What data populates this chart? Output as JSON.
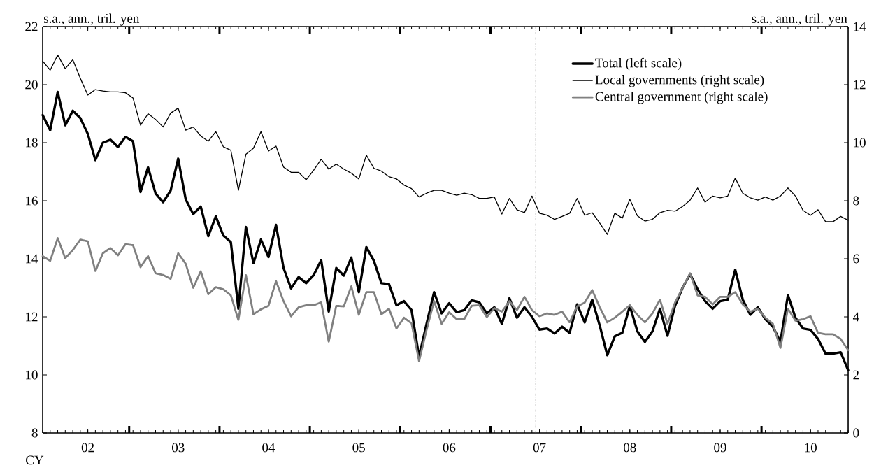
{
  "chart_data": {
    "type": "line",
    "xlabel": "CY",
    "ylabel": "s.a., ann., tril. yen",
    "y2label": "s.a., ann., tril. yen",
    "x": [
      "2002-01",
      "2002-02",
      "2002-03",
      "2002-04",
      "2002-05",
      "2002-06",
      "2002-07",
      "2002-08",
      "2002-09",
      "2002-10",
      "2002-11",
      "2002-12",
      "2003-01",
      "2003-02",
      "2003-03",
      "2003-04",
      "2003-05",
      "2003-06",
      "2003-07",
      "2003-08",
      "2003-09",
      "2003-10",
      "2003-11",
      "2003-12",
      "2004-01",
      "2004-02",
      "2004-03",
      "2004-04",
      "2004-05",
      "2004-06",
      "2004-07",
      "2004-08",
      "2004-09",
      "2004-10",
      "2004-11",
      "2004-12",
      "2005-01",
      "2005-02",
      "2005-03",
      "2005-04",
      "2005-05",
      "2005-06",
      "2005-07",
      "2005-08",
      "2005-09",
      "2005-10",
      "2005-11",
      "2005-12",
      "2006-01",
      "2006-02",
      "2006-03",
      "2006-04",
      "2006-05",
      "2006-06",
      "2006-07",
      "2006-08",
      "2006-09",
      "2006-10",
      "2006-11",
      "2006-12",
      "2007-01",
      "2007-02",
      "2007-03",
      "2007-04",
      "2007-05",
      "2007-06",
      "2007-07",
      "2007-08",
      "2007-09",
      "2007-10",
      "2007-11",
      "2007-12",
      "2008-01",
      "2008-02",
      "2008-03",
      "2008-04",
      "2008-05",
      "2008-06",
      "2008-07",
      "2008-08",
      "2008-09",
      "2008-10",
      "2008-11",
      "2008-12",
      "2009-01",
      "2009-02",
      "2009-03",
      "2009-04",
      "2009-05",
      "2009-06",
      "2009-07",
      "2009-08",
      "2009-09",
      "2009-10",
      "2009-11",
      "2009-12",
      "2010-01",
      "2010-02",
      "2010-03",
      "2010-04",
      "2010-05",
      "2010-06",
      "2010-07",
      "2010-08",
      "2010-09",
      "2010-10",
      "2010-11",
      "2010-12"
    ],
    "series": [
      {
        "name": "Total (left scale)",
        "color": "#000000",
        "axis": "y",
        "values": [
          18.95,
          18.43,
          19.75,
          18.6,
          19.1,
          18.85,
          18.3,
          17.4,
          18.0,
          18.1,
          17.85,
          18.2,
          18.05,
          16.3,
          17.15,
          16.25,
          15.95,
          16.35,
          17.45,
          16.05,
          15.54,
          15.8,
          14.78,
          15.46,
          14.8,
          14.57,
          12.28,
          15.1,
          13.85,
          14.66,
          14.06,
          15.17,
          13.68,
          12.98,
          13.37,
          13.16,
          13.44,
          13.95,
          12.18,
          13.68,
          13.42,
          14.04,
          12.85,
          14.4,
          13.93,
          13.16,
          13.13,
          12.4,
          12.54,
          12.23,
          10.63,
          11.76,
          12.85,
          12.12,
          12.47,
          12.16,
          12.23,
          12.57,
          12.5,
          12.12,
          12.33,
          11.76,
          12.64,
          11.97,
          12.33,
          12.0,
          11.56,
          11.6,
          11.43,
          11.66,
          11.45,
          12.43,
          11.81,
          12.59,
          11.7,
          10.68,
          11.33,
          11.45,
          12.38,
          11.5,
          11.14,
          11.5,
          12.28,
          11.35,
          12.38,
          13.0,
          13.47,
          12.95,
          12.54,
          12.28,
          12.54,
          12.59,
          13.62,
          12.59,
          12.07,
          12.33,
          11.92,
          11.66,
          11.14,
          12.75,
          11.97,
          11.6,
          11.55,
          11.24,
          10.73,
          10.73,
          10.78,
          10.16
        ]
      },
      {
        "name": "Local governments (right scale)",
        "color": "#000000",
        "axis": "y2",
        "values": [
          12.81,
          12.5,
          13.02,
          12.55,
          12.86,
          12.22,
          11.64,
          11.83,
          11.78,
          11.75,
          11.75,
          11.72,
          11.54,
          10.6,
          11.0,
          10.8,
          10.54,
          11.02,
          11.19,
          10.43,
          10.54,
          10.23,
          10.05,
          10.38,
          9.86,
          9.74,
          8.36,
          9.6,
          9.81,
          10.38,
          9.71,
          9.88,
          9.16,
          8.98,
          8.98,
          8.72,
          9.05,
          9.43,
          9.09,
          9.26,
          9.09,
          8.95,
          8.75,
          9.57,
          9.12,
          9.02,
          8.83,
          8.75,
          8.54,
          8.42,
          8.13,
          8.26,
          8.36,
          8.36,
          8.26,
          8.19,
          8.26,
          8.21,
          8.08,
          8.08,
          8.13,
          7.54,
          8.08,
          7.69,
          7.59,
          8.16,
          7.57,
          7.5,
          7.36,
          7.46,
          7.57,
          8.08,
          7.5,
          7.59,
          7.23,
          6.84,
          7.57,
          7.4,
          8.05,
          7.48,
          7.3,
          7.36,
          7.59,
          7.67,
          7.64,
          7.8,
          8.02,
          8.44,
          7.95,
          8.16,
          8.1,
          8.16,
          8.78,
          8.26,
          8.1,
          8.02,
          8.13,
          8.02,
          8.16,
          8.44,
          8.16,
          7.67,
          7.5,
          7.69,
          7.28,
          7.28,
          7.46,
          7.33
        ]
      },
      {
        "name": "Central government (right scale)",
        "color": "#808080",
        "axis": "y2",
        "line_style": "dotted",
        "values": [
          6.09,
          5.93,
          6.71,
          6.02,
          6.3,
          6.66,
          6.6,
          5.57,
          6.19,
          6.37,
          6.12,
          6.5,
          6.47,
          5.71,
          6.09,
          5.5,
          5.44,
          5.31,
          6.19,
          5.83,
          5.0,
          5.57,
          4.78,
          5.02,
          4.95,
          4.74,
          3.89,
          5.44,
          4.09,
          4.26,
          4.38,
          5.23,
          4.54,
          4.02,
          4.33,
          4.4,
          4.4,
          4.5,
          3.14,
          4.38,
          4.36,
          5.05,
          4.07,
          4.85,
          4.85,
          4.09,
          4.28,
          3.6,
          3.97,
          3.78,
          2.47,
          3.55,
          4.54,
          3.76,
          4.16,
          3.92,
          3.92,
          4.38,
          4.4,
          3.99,
          4.3,
          4.18,
          4.54,
          4.23,
          4.69,
          4.23,
          4.02,
          4.12,
          4.07,
          4.18,
          3.81,
          4.36,
          4.49,
          4.92,
          4.33,
          3.81,
          3.97,
          4.18,
          4.4,
          4.07,
          3.81,
          4.12,
          4.59,
          3.76,
          4.49,
          5.0,
          5.5,
          4.74,
          4.69,
          4.43,
          4.69,
          4.69,
          4.85,
          4.43,
          4.18,
          4.28,
          3.97,
          3.76,
          2.93,
          4.28,
          3.87,
          3.92,
          4.02,
          3.45,
          3.4,
          3.4,
          3.24,
          2.85
        ]
      }
    ],
    "xlim": [
      "2002-01",
      "2010-12"
    ],
    "xticks": [
      {
        "value": "2002-07",
        "label": "02"
      },
      {
        "value": "2003-07",
        "label": "03"
      },
      {
        "value": "2004-07",
        "label": "04"
      },
      {
        "value": "2005-07",
        "label": "05"
      },
      {
        "value": "2006-07",
        "label": "06"
      },
      {
        "value": "2007-07",
        "label": "07"
      },
      {
        "value": "2008-07",
        "label": "08"
      },
      {
        "value": "2009-07",
        "label": "09"
      },
      {
        "value": "2010-07",
        "label": "10"
      },
      {
        "value": "2002-12-16",
        "label": null
      },
      {
        "value": "2003-12-16",
        "label": null
      },
      {
        "value": "2004-12-16",
        "label": null
      },
      {
        "value": "2005-12-16",
        "label": null
      },
      {
        "value": "2006-12-16",
        "label": null
      },
      {
        "value": "2007-12-16",
        "label": null
      },
      {
        "value": "2008-12-16",
        "label": null
      },
      {
        "value": "2009-12-16",
        "label": null
      }
    ],
    "ylim": [
      8,
      22
    ],
    "yticks": [
      8,
      10,
      12,
      14,
      16,
      18,
      20,
      22
    ],
    "y2lim": [
      0,
      14
    ],
    "y2ticks": [
      0,
      2,
      4,
      6,
      8,
      10,
      12,
      14
    ],
    "ref_lines": [
      {
        "axis": "x",
        "value": "2007-06-16",
        "color": "#808080",
        "line_style": "dashed"
      }
    ],
    "legend": "top right",
    "grid": false,
    "line_style": "solid",
    "marker": "none"
  }
}
